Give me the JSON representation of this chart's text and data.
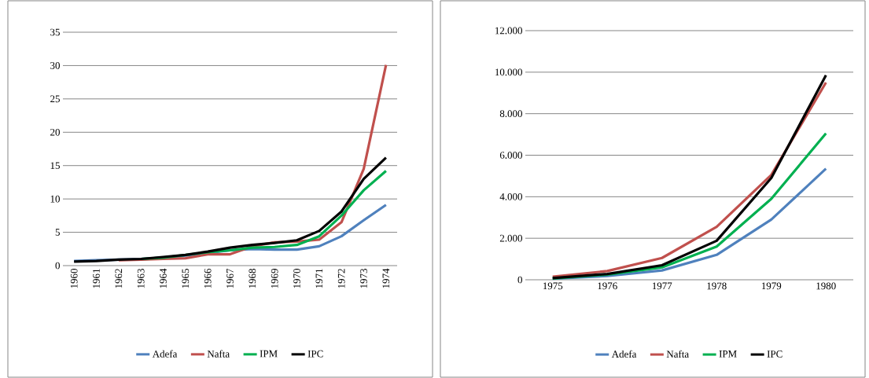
{
  "chart_data": [
    {
      "type": "line",
      "categories": [
        "1960",
        "1961",
        "1962",
        "1963",
        "1964",
        "1965",
        "1966",
        "1967",
        "1968",
        "1969",
        "1970",
        "1971",
        "1972",
        "1973",
        "1974"
      ],
      "series": [
        {
          "name": "Adefa",
          "color": "#4f81bd",
          "values": [
            0.7,
            0.8,
            0.9,
            1.0,
            1.2,
            1.5,
            1.9,
            2.3,
            2.5,
            2.4,
            2.4,
            2.9,
            4.4,
            6.8,
            9.1
          ]
        },
        {
          "name": "Nafta",
          "color": "#c0504d",
          "values": [
            null,
            null,
            0.8,
            0.9,
            1.0,
            1.1,
            1.7,
            1.7,
            2.9,
            3.5,
            3.6,
            3.9,
            6.5,
            14.5,
            30.1
          ]
        },
        {
          "name": "IPM",
          "color": "#00b050",
          "values": [
            null,
            null,
            null,
            1.0,
            1.2,
            1.6,
            2.0,
            2.3,
            2.7,
            2.8,
            3.1,
            4.4,
            7.5,
            11.3,
            14.2
          ]
        },
        {
          "name": "IPC",
          "color": "#000000",
          "values": [
            0.6,
            0.7,
            0.9,
            1.0,
            1.3,
            1.6,
            2.1,
            2.7,
            3.1,
            3.4,
            3.8,
            5.2,
            8.1,
            13.0,
            16.2
          ]
        }
      ],
      "ylim": [
        0,
        35
      ],
      "yticks": [
        0,
        5,
        10,
        15,
        20,
        25,
        30,
        35
      ],
      "grid": "y",
      "legend": "bottom",
      "marker": "none",
      "line_style": "solid"
    },
    {
      "type": "line",
      "categories": [
        "1975",
        "1976",
        "1977",
        "1978",
        "1979",
        "1980"
      ],
      "series": [
        {
          "name": "Adefa",
          "color": "#4f81bd",
          "values": [
            50,
            180,
            450,
            1200,
            2900,
            5350
          ]
        },
        {
          "name": "Nafta",
          "color": "#c0504d",
          "values": [
            150,
            420,
            1050,
            2550,
            5050,
            9500
          ]
        },
        {
          "name": "IPM",
          "color": "#00b050",
          "values": [
            60,
            250,
            600,
            1600,
            3900,
            7050
          ]
        },
        {
          "name": "IPC",
          "color": "#000000",
          "values": [
            80,
            280,
            700,
            1880,
            4900,
            9850
          ]
        }
      ],
      "ylim": [
        0,
        12000
      ],
      "yticks": [
        0,
        {
          "value": 2000,
          "label": "2.000"
        },
        {
          "value": 4000,
          "label": "4.000"
        },
        {
          "value": 6000,
          "label": "6.000"
        },
        {
          "value": 8000,
          "label": "8.000"
        },
        {
          "value": 10000,
          "label": "10.000"
        },
        {
          "value": 12000,
          "label": "12.000"
        }
      ],
      "grid": "y",
      "legend": "bottom",
      "marker": "none",
      "line_style": "solid"
    }
  ]
}
